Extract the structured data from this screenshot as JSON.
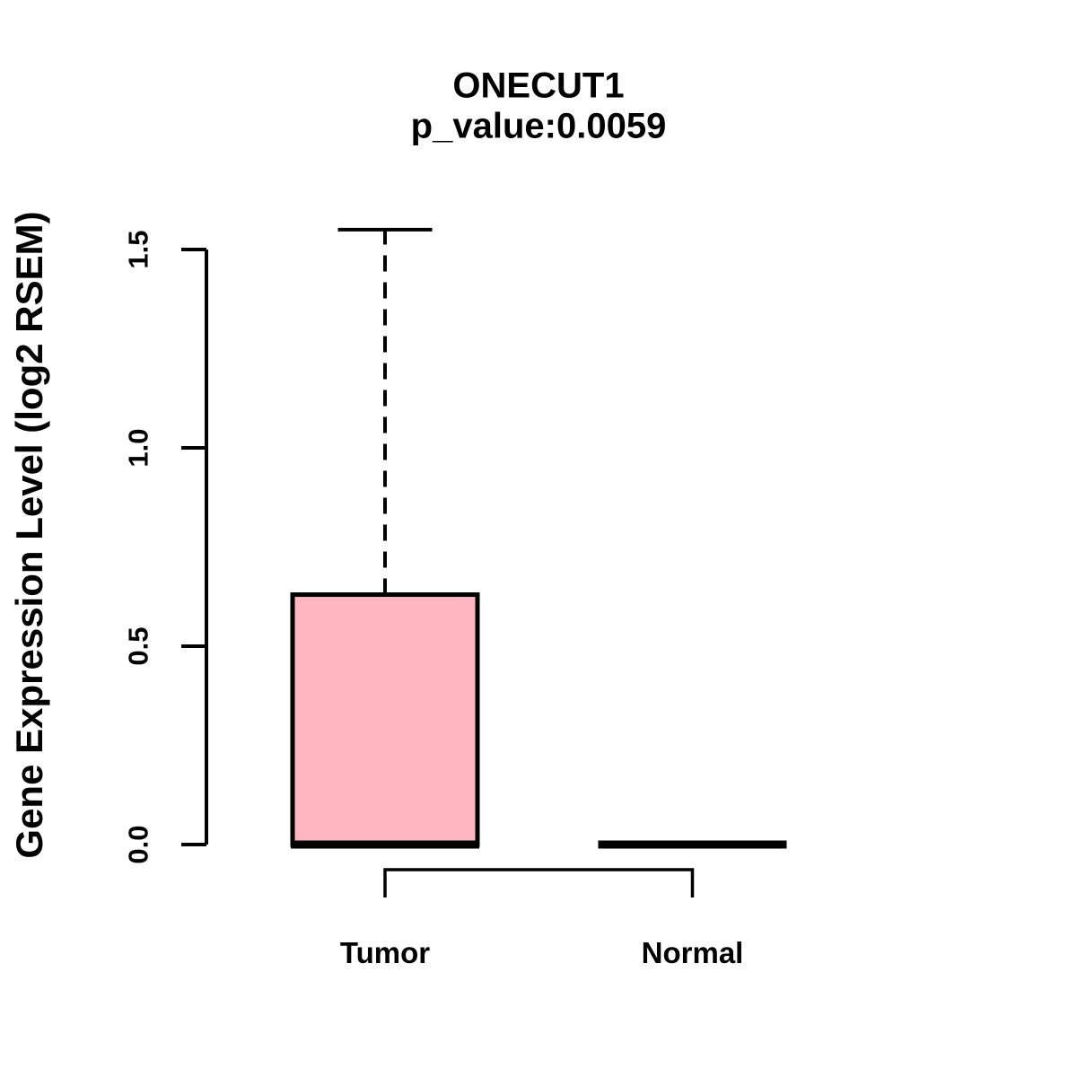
{
  "chart_data": {
    "type": "boxplot",
    "title": "ONECUT1",
    "subtitle": "p_value:0.0059",
    "ylabel": "Gene Expression Level (log2 RSEM)",
    "xlabel": "",
    "ylim": [
      0,
      1.55
    ],
    "grid": false,
    "legend": null,
    "yticks": [
      {
        "value": 0.0,
        "label": "0.0"
      },
      {
        "value": 0.5,
        "label": "0.5"
      },
      {
        "value": 1.0,
        "label": "1.0"
      },
      {
        "value": 1.5,
        "label": "1.5"
      }
    ],
    "groups": [
      {
        "label": "Tumor",
        "median": 0.0,
        "q1": 0.0,
        "q3": 0.63,
        "whisker_low": 0.0,
        "whisker_high": 1.55,
        "fill": "#FFB6C1"
      },
      {
        "label": "Normal",
        "median": 0.0,
        "q1": 0.0,
        "q3": 0.0,
        "whisker_low": 0.0,
        "whisker_high": 0.0,
        "fill": "#FFB6C1"
      }
    ],
    "comparison_bracket": {
      "between": [
        "Tumor",
        "Normal"
      ]
    },
    "colors": {
      "box_fill": "#FFB6C1",
      "line": "#000000",
      "background": "#ffffff"
    }
  }
}
